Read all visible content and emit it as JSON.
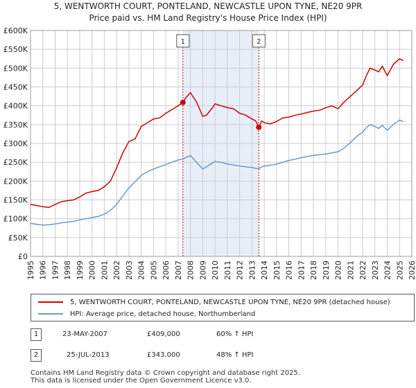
{
  "header": {
    "title_line1": "5, WENTWORTH COURT, PONTELAND, NEWCASTLE UPON TYNE, NE20 9PR",
    "title_line2": "Price paid vs. HM Land Registry's House Price Index (HPI)"
  },
  "colors": {
    "property": "#cc0000",
    "hpi": "#6699cc",
    "shade": "#e8eef8",
    "grid": "#cccccc",
    "marker_line": "#cc0000"
  },
  "legend": {
    "property_label": "5, WENTWORTH COURT, PONTELAND, NEWCASTLE UPON TYNE, NE20 9PR (detached house)",
    "hpi_label": "HPI: Average price, detached house, Northumberland"
  },
  "sales": [
    {
      "num": "1",
      "date": "23-MAY-2007",
      "price": "£409,000",
      "hpi_change": "60% ↑ HPI"
    },
    {
      "num": "2",
      "date": "25-JUL-2013",
      "price": "£343,000",
      "hpi_change": "48% ↑ HPI"
    }
  ],
  "footer": {
    "line1": "Contains HM Land Registry data © Crown copyright and database right 2025.",
    "line2": "This data is licensed under the Open Government Licence v3.0."
  },
  "chart_data": {
    "type": "line",
    "title": "5, WENTWORTH COURT, PONTELAND, NEWCASTLE UPON TYNE, NE20 9PR",
    "subtitle": "Price paid vs. HM Land Registry's House Price Index (HPI)",
    "xlabel": "",
    "ylabel": "",
    "xlim": [
      1995,
      2026
    ],
    "ylim": [
      0,
      600000
    ],
    "x_ticks": [
      "1995",
      "1996",
      "1997",
      "1998",
      "1999",
      "2000",
      "2001",
      "2002",
      "2003",
      "2004",
      "2005",
      "2006",
      "2007",
      "2008",
      "2009",
      "2010",
      "2011",
      "2012",
      "2013",
      "2014",
      "2015",
      "2016",
      "2017",
      "2018",
      "2019",
      "2020",
      "2021",
      "2022",
      "2023",
      "2024",
      "2025",
      "2026"
    ],
    "y_ticks": [
      "£0",
      "£50K",
      "£100K",
      "£150K",
      "£200K",
      "£250K",
      "£300K",
      "£350K",
      "£400K",
      "£450K",
      "£500K",
      "£550K",
      "£600K"
    ],
    "grid": true,
    "shaded_period": [
      2007.39,
      2013.56
    ],
    "series": [
      {
        "name": "5, WENTWORTH COURT, PONTELAND, NEWCASTLE UPON TYNE, NE20 9PR (detached house)",
        "x": [
          1995,
          1995.5,
          1996,
          1996.5,
          1997,
          1997.5,
          1998,
          1998.5,
          1999,
          1999.5,
          2000,
          2000.5,
          2001,
          2001.5,
          2002,
          2002.5,
          2003,
          2003.5,
          2004,
          2004.5,
          2005,
          2005.5,
          2006,
          2006.5,
          2007,
          2007.39,
          2007.6,
          2008,
          2008.5,
          2009,
          2009.3,
          2009.8,
          2010,
          2010.5,
          2011,
          2011.5,
          2012,
          2012.5,
          2013,
          2013.3,
          2013.56,
          2013.8,
          2014,
          2014.5,
          2015,
          2015.5,
          2016,
          2016.5,
          2017,
          2017.5,
          2018,
          2018.5,
          2019,
          2019.5,
          2020,
          2020.5,
          2021,
          2021.5,
          2022,
          2022.3,
          2022.6,
          2023,
          2023.3,
          2023.6,
          2024,
          2024.5,
          2025,
          2025.3
        ],
        "values": [
          138000,
          135000,
          132000,
          130000,
          138000,
          145000,
          148000,
          150000,
          158000,
          168000,
          172000,
          175000,
          185000,
          200000,
          235000,
          275000,
          305000,
          312000,
          345000,
          355000,
          365000,
          368000,
          380000,
          390000,
          400000,
          409000,
          420000,
          435000,
          410000,
          372000,
          375000,
          395000,
          405000,
          400000,
          395000,
          392000,
          380000,
          375000,
          365000,
          360000,
          343000,
          360000,
          355000,
          352000,
          358000,
          368000,
          370000,
          375000,
          378000,
          382000,
          386000,
          388000,
          395000,
          400000,
          392000,
          410000,
          425000,
          440000,
          455000,
          480000,
          500000,
          495000,
          490000,
          505000,
          480000,
          510000,
          525000,
          520000
        ]
      },
      {
        "name": "HPI: Average price, detached house, Northumberland",
        "x": [
          1995,
          1995.5,
          1996,
          1996.5,
          1997,
          1997.5,
          1998,
          1998.5,
          1999,
          1999.5,
          2000,
          2000.5,
          2001,
          2001.5,
          2002,
          2002.5,
          2003,
          2003.5,
          2004,
          2004.5,
          2005,
          2005.5,
          2006,
          2006.5,
          2007,
          2007.39,
          2007.6,
          2008,
          2008.5,
          2009,
          2009.3,
          2009.8,
          2010,
          2010.5,
          2011,
          2011.5,
          2012,
          2012.5,
          2013,
          2013.3,
          2013.56,
          2013.8,
          2014,
          2014.5,
          2015,
          2015.5,
          2016,
          2016.5,
          2017,
          2017.5,
          2018,
          2018.5,
          2019,
          2019.5,
          2020,
          2020.5,
          2021,
          2021.5,
          2022,
          2022.3,
          2022.6,
          2023,
          2023.3,
          2023.6,
          2024,
          2024.5,
          2025,
          2025.3
        ],
        "values": [
          88000,
          85000,
          83000,
          84000,
          86000,
          89000,
          91000,
          93000,
          97000,
          100000,
          103000,
          106000,
          112000,
          122000,
          138000,
          160000,
          182000,
          198000,
          215000,
          225000,
          232000,
          238000,
          244000,
          250000,
          256000,
          258000,
          262000,
          268000,
          250000,
          232000,
          238000,
          248000,
          252000,
          250000,
          245000,
          243000,
          240000,
          238000,
          236000,
          234000,
          232000,
          238000,
          240000,
          242000,
          245000,
          250000,
          255000,
          258000,
          262000,
          265000,
          268000,
          270000,
          272000,
          275000,
          278000,
          288000,
          302000,
          318000,
          330000,
          342000,
          350000,
          345000,
          340000,
          348000,
          335000,
          350000,
          362000,
          358000
        ]
      }
    ],
    "annotations": [
      {
        "label": "1",
        "x": 2007.39,
        "y": 409000
      },
      {
        "label": "2",
        "x": 2013.56,
        "y": 343000
      }
    ]
  }
}
